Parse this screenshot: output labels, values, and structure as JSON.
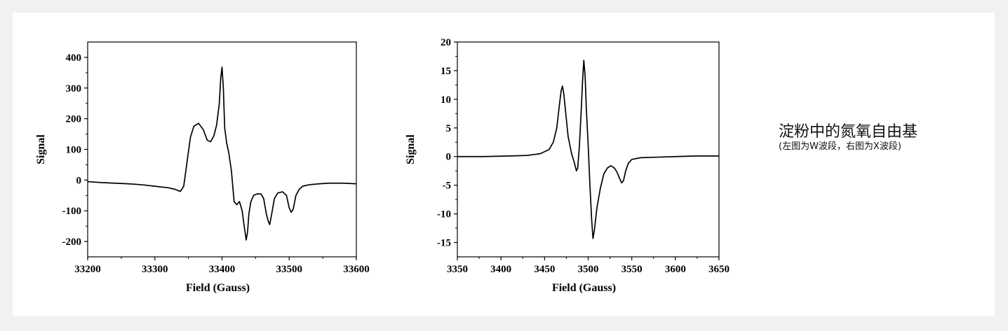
{
  "caption": {
    "title": "淀粉中的氮氧自由基",
    "subtitle": "(左图为W波段，右图为X波段)"
  },
  "chart_data": [
    {
      "type": "line",
      "xlabel": "Field (Gauss)",
      "ylabel": "Signal",
      "xlim": [
        33200,
        33600
      ],
      "ylim": [
        -250,
        450
      ],
      "xticks": [
        33200,
        33300,
        33400,
        33500,
        33600
      ],
      "yticks": [
        -200,
        -100,
        0,
        100,
        200,
        300,
        400
      ],
      "grid": false,
      "series": [
        {
          "color": "#000000",
          "x": [
            33200,
            33220,
            33240,
            33260,
            33280,
            33300,
            33320,
            33330,
            33338,
            33343,
            33348,
            33353,
            33358,
            33365,
            33372,
            33378,
            33383,
            33388,
            33392,
            33396,
            33398,
            33400,
            33402,
            33404,
            33407,
            33410,
            33414,
            33418,
            33422,
            33426,
            33430,
            33433,
            33436,
            33438,
            33440,
            33443,
            33447,
            33452,
            33458,
            33462,
            33466,
            33469,
            33471,
            33474,
            33478,
            33483,
            33490,
            33496,
            33500,
            33503,
            33506,
            33510,
            33515,
            33520,
            33530,
            33545,
            33560,
            33580,
            33600
          ],
          "y": [
            -5,
            -8,
            -10,
            -12,
            -15,
            -20,
            -25,
            -30,
            -37,
            -20,
            60,
            140,
            175,
            185,
            165,
            130,
            125,
            145,
            180,
            250,
            330,
            368,
            300,
            170,
            120,
            90,
            30,
            -70,
            -80,
            -70,
            -100,
            -150,
            -195,
            -170,
            -110,
            -70,
            -50,
            -45,
            -45,
            -60,
            -110,
            -135,
            -145,
            -110,
            -60,
            -42,
            -38,
            -50,
            -90,
            -105,
            -95,
            -50,
            -30,
            -20,
            -15,
            -12,
            -10,
            -10,
            -12
          ]
        }
      ]
    },
    {
      "type": "line",
      "xlabel": "Field (Gauss)",
      "ylabel": "Signal",
      "xlim": [
        3350,
        3650
      ],
      "ylim": [
        -17.5,
        20
      ],
      "xticks": [
        3350,
        3400,
        3450,
        3500,
        3550,
        3600,
        3650
      ],
      "yticks": [
        -15,
        -10,
        -5,
        0,
        5,
        10,
        15,
        20
      ],
      "grid": false,
      "series": [
        {
          "color": "#000000",
          "x": [
            3350,
            3380,
            3410,
            3430,
            3445,
            3455,
            3460,
            3464,
            3467,
            3469,
            3470.5,
            3472,
            3474,
            3477,
            3481,
            3484,
            3486.5,
            3488,
            3490,
            3492,
            3493.5,
            3495,
            3496.5,
            3498,
            3500,
            3502,
            3504,
            3505.5,
            3507,
            3510,
            3514,
            3518,
            3522,
            3526,
            3530,
            3533,
            3536,
            3538.5,
            3540.5,
            3543,
            3546,
            3550,
            3560,
            3580,
            3600,
            3625,
            3650
          ],
          "y": [
            0,
            0,
            0.1,
            0.2,
            0.5,
            1.2,
            2.5,
            5,
            9,
            11.5,
            12.3,
            11,
            8,
            3.5,
            0.5,
            -1,
            -2.5,
            -2,
            2,
            8,
            13,
            16.8,
            14,
            8,
            2,
            -5,
            -11,
            -14.3,
            -13,
            -9,
            -5.5,
            -3,
            -2,
            -1.6,
            -2,
            -2.7,
            -3.8,
            -4.6,
            -4.2,
            -2.5,
            -1.2,
            -0.5,
            -0.2,
            -0.1,
            0,
            0.1,
            0.1
          ]
        }
      ]
    }
  ]
}
